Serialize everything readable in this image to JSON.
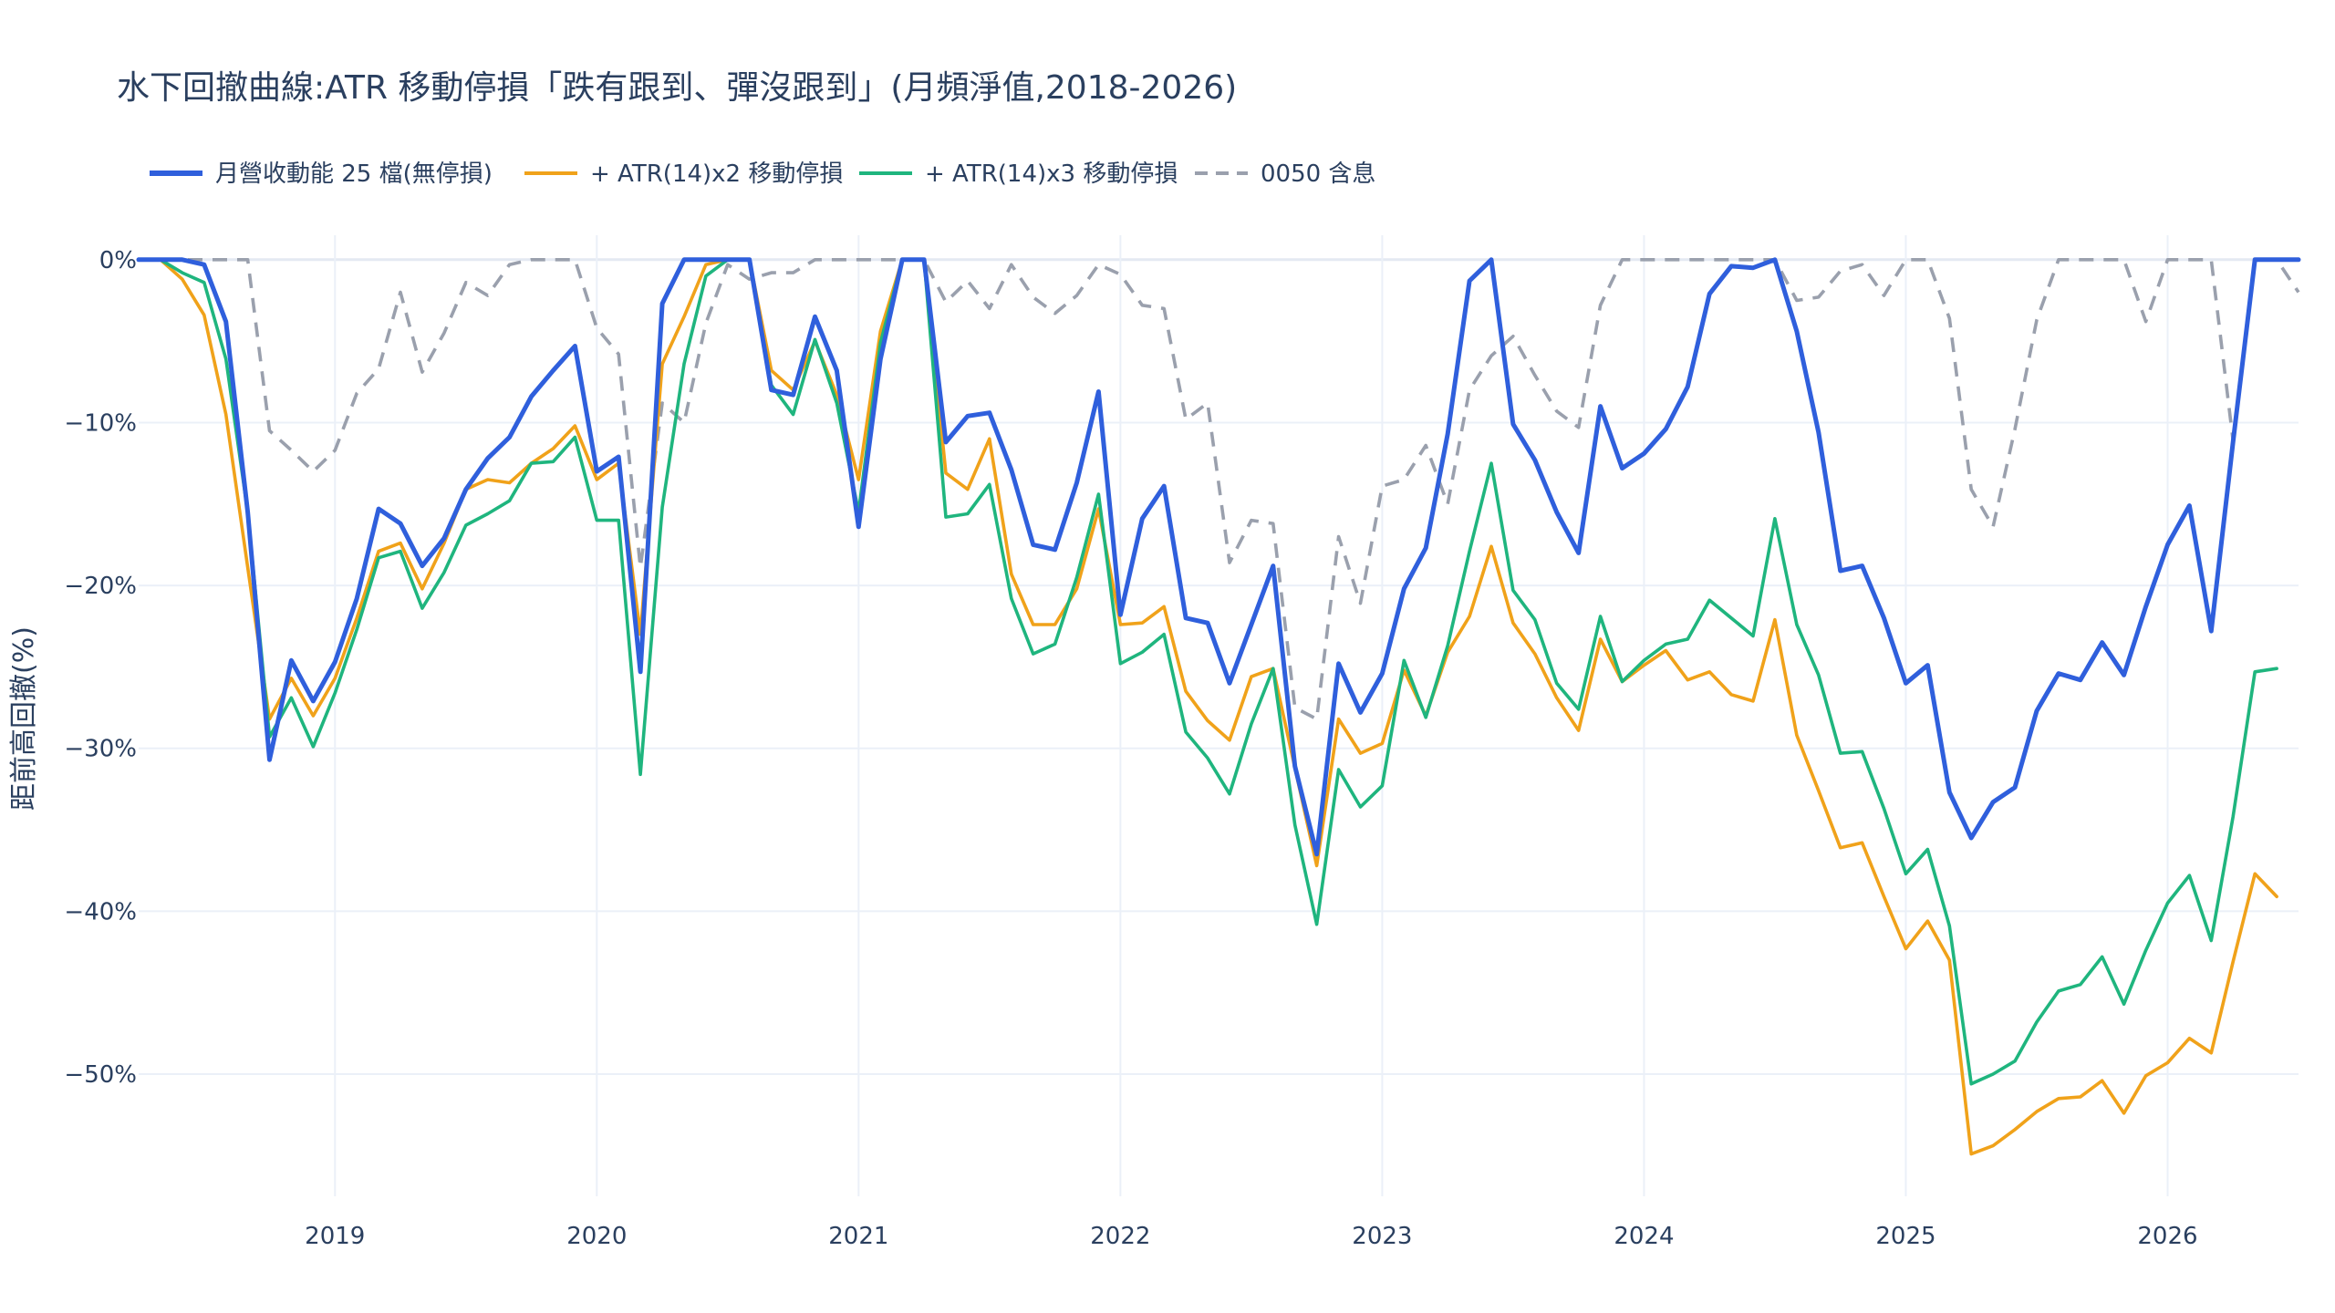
{
  "chart_data": {
    "type": "line",
    "title": "水下回撤曲線:ATR 移動停損「跌有跟到、彈沒跟到」(月頻淨值,2018-2026)",
    "xlabel": "",
    "ylabel": "距前高回撤(%)",
    "x_start": "2018-04",
    "x_end": "2026-07",
    "xlim": [
      "2018-04",
      "2026-07"
    ],
    "ylim": [
      -57.5,
      1.5
    ],
    "y_ticks": [
      0,
      -10,
      -20,
      -30,
      -40,
      -50
    ],
    "y_tick_labels": [
      "0%",
      "−10%",
      "−20%",
      "−30%",
      "−40%",
      "−50%"
    ],
    "x_ticks": [
      "2019-01",
      "2020-01",
      "2021-01",
      "2022-01",
      "2023-01",
      "2024-01",
      "2025-01",
      "2026-01"
    ],
    "x_tick_labels": [
      "2019",
      "2020",
      "2021",
      "2022",
      "2023",
      "2024",
      "2025",
      "2026"
    ],
    "grid": true,
    "legend_position": "top-left, horizontal",
    "series": [
      {
        "name": "月營收動能 25 檔(無停損)",
        "color": "#2f5fdc",
        "dash": "solid",
        "values": [
          0,
          0,
          0,
          -0.3,
          -3.8,
          -15.5,
          -30.7,
          -24.6,
          -27.1,
          -24.7,
          -20.8,
          -15.3,
          -16.2,
          -18.8,
          -17.1,
          -14.1,
          -12.2,
          -10.9,
          -8.4,
          -6.8,
          -5.3,
          -13.0,
          -12.1,
          -25.3,
          -2.7,
          0,
          0,
          0,
          0,
          -8.0,
          -8.3,
          -3.5,
          -6.8,
          -16.4,
          -6.1,
          0,
          0,
          -11.2,
          -9.6,
          -9.4,
          -12.9,
          -17.5,
          -17.8,
          -13.7,
          -8.1,
          -21.8,
          -15.9,
          -13.9,
          -22.0,
          -22.3,
          -26.0,
          -22.4,
          -18.8,
          -31.1,
          -36.5,
          -24.8,
          -27.8,
          -25.4,
          -20.2,
          -17.7,
          -10.7,
          -1.3,
          0,
          -10.1,
          -12.3,
          -15.5,
          -18.0,
          -9.0,
          -12.8,
          -11.9,
          -10.4,
          -7.8,
          -2.1,
          -0.4,
          -0.5,
          0,
          -4.4,
          -10.6,
          -19.1,
          -18.8,
          -22.0,
          -26.0,
          -24.9,
          -32.7,
          -35.5,
          -33.3,
          -32.4,
          -27.7,
          -25.4,
          -25.8,
          -23.5,
          -25.5,
          -21.3,
          -17.5,
          -15.1,
          -22.8,
          -11.2,
          0,
          0,
          0
        ],
        "values_unit": "%"
      },
      {
        "name": "+ ATR(14)x2 移動停損",
        "color": "#f0a21a",
        "dash": "solid",
        "values": [
          0,
          0,
          -1.2,
          -3.4,
          -9.5,
          -18.9,
          -28.2,
          -25.7,
          -28.0,
          -25.7,
          -22.0,
          -17.9,
          -17.4,
          -20.2,
          -17.4,
          -14.1,
          -13.5,
          -13.7,
          -12.5,
          -11.6,
          -10.2,
          -13.5,
          -12.5,
          -23.0,
          -6.4,
          -3.5,
          -0.3,
          0,
          0,
          -6.8,
          -8.0,
          -5.0,
          -8.3,
          -13.5,
          -4.4,
          0,
          0,
          -13.1,
          -14.1,
          -11.0,
          -19.3,
          -22.4,
          -22.4,
          -20.2,
          -15.3,
          -22.4,
          -22.3,
          -21.3,
          -26.5,
          -28.3,
          -29.5,
          -25.6,
          -25.1,
          -31.2,
          -37.2,
          -28.2,
          -30.3,
          -29.7,
          -25.2,
          -28.0,
          -24.1,
          -21.9,
          -17.6,
          -22.3,
          -24.2,
          -26.9,
          -28.9,
          -23.3,
          -25.9,
          -24.9,
          -24.0,
          -25.8,
          -25.3,
          -26.7,
          -27.1,
          -22.1,
          -29.2,
          -32.6,
          -36.1,
          -35.8,
          -39.1,
          -42.3,
          -40.6,
          -43.0,
          -54.9,
          -54.4,
          -53.4,
          -52.3,
          -51.5,
          -51.4,
          -50.4,
          -52.4,
          -50.1,
          -49.3,
          -47.8,
          -48.7,
          -43.1,
          -37.7,
          -39.1
        ],
        "values_unit": "%"
      },
      {
        "name": "+ ATR(14)x3 移動停損",
        "color": "#1fb57e",
        "dash": "solid",
        "values": [
          0,
          0,
          -0.8,
          -1.4,
          -6.1,
          -15.5,
          -29.3,
          -26.9,
          -29.9,
          -26.6,
          -22.7,
          -18.3,
          -17.9,
          -21.4,
          -19.2,
          -16.3,
          -15.6,
          -14.8,
          -12.5,
          -12.4,
          -10.9,
          -16.0,
          -16.0,
          -31.6,
          -15.2,
          -6.4,
          -1.0,
          0,
          0,
          -7.7,
          -9.5,
          -4.9,
          -8.8,
          -15.5,
          -5.1,
          0,
          0,
          -15.8,
          -15.6,
          -13.8,
          -20.8,
          -24.2,
          -23.6,
          -19.5,
          -14.4,
          -24.8,
          -24.1,
          -23.0,
          -29.0,
          -30.6,
          -32.8,
          -28.5,
          -25.1,
          -34.7,
          -40.8,
          -31.3,
          -33.6,
          -32.3,
          -24.6,
          -28.1,
          -23.7,
          -17.9,
          -12.5,
          -20.3,
          -22.1,
          -26.0,
          -27.6,
          -21.9,
          -25.9,
          -24.6,
          -23.6,
          -23.3,
          -20.9,
          -22.0,
          -23.1,
          -15.9,
          -22.4,
          -25.5,
          -30.3,
          -30.2,
          -33.7,
          -37.7,
          -36.2,
          -40.9,
          -50.6,
          -50.0,
          -49.2,
          -46.8,
          -44.9,
          -44.5,
          -42.8,
          -45.7,
          -42.4,
          -39.5,
          -37.8,
          -41.8,
          -34.2,
          -25.3,
          -25.1
        ],
        "values_unit": "%"
      },
      {
        "name": "0050 含息",
        "color": "#9aa0ad",
        "dash": "dashed",
        "values": [
          0,
          0,
          0,
          0,
          0,
          0,
          -10.5,
          -11.7,
          -13.0,
          -11.7,
          -8.2,
          -6.7,
          -2.0,
          -6.9,
          -4.5,
          -1.4,
          -2.2,
          -0.3,
          0,
          0,
          0,
          -4.2,
          -5.8,
          -18.9,
          -8.8,
          -10.0,
          -3.9,
          -0.3,
          -1.2,
          -0.8,
          -0.8,
          0,
          0,
          0,
          0,
          0,
          0,
          -2.6,
          -1.3,
          -3.0,
          -0.3,
          -2.3,
          -3.3,
          -2.2,
          -0.3,
          -0.9,
          -2.8,
          -3.0,
          -9.8,
          -8.8,
          -18.6,
          -16.0,
          -16.2,
          -27.5,
          -28.2,
          -17.0,
          -21.1,
          -13.9,
          -13.5,
          -11.4,
          -15.0,
          -8.0,
          -5.9,
          -4.7,
          -7.1,
          -9.3,
          -10.3,
          -2.8,
          0,
          0,
          0,
          0,
          0,
          0,
          0,
          0,
          -2.5,
          -2.3,
          -0.7,
          -0.3,
          -2.2,
          0,
          0,
          -3.6,
          -14.1,
          -16.4,
          -10.4,
          -3.7,
          0,
          0,
          0,
          0,
          -3.8,
          0,
          0,
          0,
          -11.1,
          0,
          0,
          -2.0
        ],
        "values_unit": "%"
      }
    ]
  }
}
